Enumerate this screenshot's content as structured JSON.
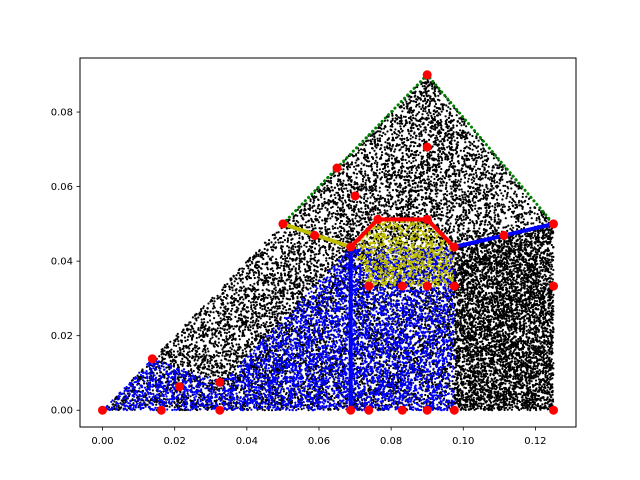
{
  "chart_data": {
    "type": "scatter",
    "title": "",
    "xlabel": "",
    "ylabel": "",
    "xlim": [
      -0.00625,
      0.13125
    ],
    "ylim": [
      -0.0045,
      0.0945
    ],
    "grid": false,
    "legend": null,
    "x_ticks": [
      0.0,
      0.02,
      0.04,
      0.06,
      0.08,
      0.1,
      0.12
    ],
    "x_tick_labels": [
      "0.00",
      "0.02",
      "0.04",
      "0.06",
      "0.08",
      "0.10",
      "0.12"
    ],
    "y_ticks": [
      0.0,
      0.02,
      0.04,
      0.06,
      0.08
    ],
    "y_tick_labels": [
      "0.00",
      "0.02",
      "0.04",
      "0.06",
      "0.08"
    ],
    "colors": {
      "black": "#000000",
      "blue": "#0000ff",
      "yellow": "#bfbf00",
      "green": "#008000",
      "red": "#ff0000"
    },
    "regions": [
      {
        "color": "black",
        "polygon": [
          [
            0.0,
            0.0
          ],
          [
            0.09,
            0.09
          ],
          [
            0.125,
            0.05
          ],
          [
            0.125,
            0.0
          ]
        ]
      },
      {
        "color": "blue",
        "polygon": [
          [
            0.0,
            0.0
          ],
          [
            0.0138,
            0.0138
          ],
          [
            0.0333,
            0.0075
          ],
          [
            0.0333,
            0.0
          ],
          [
            0.0,
            0.0
          ]
        ]
      },
      {
        "color": "blue",
        "polygon": [
          [
            0.0333,
            0.0
          ],
          [
            0.0333,
            0.0075
          ],
          [
            0.0688,
            0.0438
          ],
          [
            0.0975,
            0.0438
          ],
          [
            0.0975,
            0.0
          ],
          [
            0.0333,
            0.0
          ]
        ]
      },
      {
        "color": "yellow",
        "polygon": [
          [
            0.0688,
            0.0438
          ],
          [
            0.0763,
            0.0512
          ],
          [
            0.09,
            0.0512
          ],
          [
            0.0975,
            0.0438
          ],
          [
            0.0975,
            0.0333
          ],
          [
            0.0738,
            0.0333
          ]
        ]
      },
      {
        "color": "black",
        "polygon": [
          [
            0.0975,
            0.0438
          ],
          [
            0.125,
            0.05
          ],
          [
            0.125,
            0.0
          ],
          [
            0.0975,
            0.0
          ]
        ]
      }
    ],
    "lines": [
      {
        "color": "green",
        "style": "dotted",
        "points": [
          [
            0.05,
            0.05
          ],
          [
            0.09,
            0.09
          ],
          [
            0.125,
            0.05
          ]
        ]
      },
      {
        "color": "yellow",
        "style": "solid",
        "points": [
          [
            0.05,
            0.05
          ],
          [
            0.0688,
            0.0438
          ]
        ]
      },
      {
        "color": "red",
        "style": "solid",
        "points": [
          [
            0.0688,
            0.0438
          ],
          [
            0.0763,
            0.0512
          ],
          [
            0.09,
            0.0512
          ],
          [
            0.0975,
            0.0438
          ]
        ]
      },
      {
        "color": "blue",
        "style": "solid",
        "points": [
          [
            0.0975,
            0.0438
          ],
          [
            0.125,
            0.05
          ]
        ]
      },
      {
        "color": "blue",
        "style": "solid",
        "points": [
          [
            0.0688,
            0.0438
          ],
          [
            0.0688,
            0.0
          ]
        ]
      }
    ],
    "red_points": [
      [
        0.0,
        0.0
      ],
      [
        0.0138,
        0.0138
      ],
      [
        0.0163,
        0.0
      ],
      [
        0.0213,
        0.0063
      ],
      [
        0.0325,
        0.0075
      ],
      [
        0.0325,
        0.0
      ],
      [
        0.05,
        0.05
      ],
      [
        0.0588,
        0.0469
      ],
      [
        0.0688,
        0.0438
      ],
      [
        0.0688,
        0.0
      ],
      [
        0.065,
        0.065
      ],
      [
        0.07,
        0.0575
      ],
      [
        0.09,
        0.09
      ],
      [
        0.09,
        0.0706
      ],
      [
        0.0763,
        0.0512
      ],
      [
        0.09,
        0.0512
      ],
      [
        0.0975,
        0.0438
      ],
      [
        0.0738,
        0.0333
      ],
      [
        0.0738,
        0.0
      ],
      [
        0.0831,
        0.0333
      ],
      [
        0.0831,
        0.0
      ],
      [
        0.09,
        0.0333
      ],
      [
        0.09,
        0.0
      ],
      [
        0.0975,
        0.0333
      ],
      [
        0.0975,
        0.0
      ],
      [
        0.1113,
        0.0469
      ],
      [
        0.125,
        0.05
      ],
      [
        0.125,
        0.0333
      ],
      [
        0.125,
        0.0
      ]
    ]
  }
}
